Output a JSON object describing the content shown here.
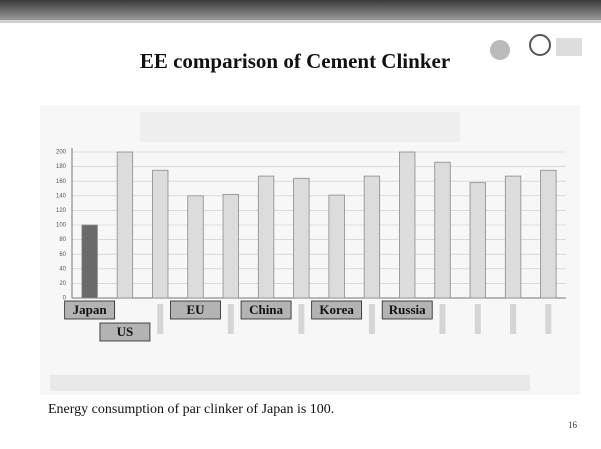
{
  "slide_title": "EE comparison of Cement Clinker",
  "caption": "Energy consumption of par clinker of Japan is 100.",
  "page_number": "16",
  "chart_data": {
    "type": "bar",
    "categories": [
      "Japan",
      "US",
      null,
      "EU",
      null,
      "China",
      null,
      "Korea",
      null,
      "Russia",
      null,
      null,
      null,
      null
    ],
    "values": [
      100,
      200,
      175,
      140,
      142,
      167,
      164,
      141,
      167,
      200,
      186,
      158,
      167,
      175
    ],
    "color": "#dcdcdc",
    "highlight_color": "#6a6a6a",
    "ylim": [
      0,
      200
    ],
    "yticks": [
      0,
      20,
      40,
      60,
      80,
      100,
      120,
      140,
      160,
      180,
      200
    ],
    "grid": true
  }
}
